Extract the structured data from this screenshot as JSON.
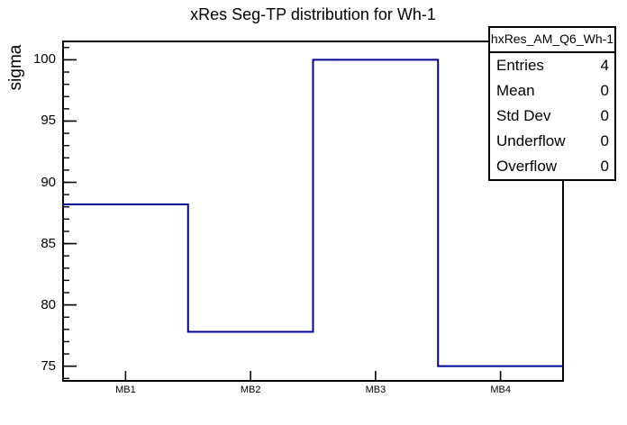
{
  "chart_data": {
    "type": "bar",
    "style": "step-histogram",
    "title": "xRes Seg-TP distribution for Wh-1",
    "xlabel": "",
    "ylabel": "sigma",
    "categories": [
      "MB1",
      "MB2",
      "MB3",
      "MB4"
    ],
    "values": [
      88.2,
      77.8,
      100,
      75
    ],
    "ylim": [
      73.8,
      101.5
    ],
    "y_major_ticks": [
      75,
      80,
      85,
      90,
      95,
      100
    ],
    "y_minor_tick_step": 1,
    "grid": false,
    "legend_position": "none"
  },
  "stats_box": {
    "name": "hxRes_AM_Q6_Wh-1",
    "rows": [
      {
        "label": "Entries",
        "value": "4"
      },
      {
        "label": "Mean",
        "value": "0"
      },
      {
        "label": "Std Dev",
        "value": "0"
      },
      {
        "label": "Underflow",
        "value": "0"
      },
      {
        "label": "Overflow",
        "value": "0"
      }
    ]
  },
  "colors": {
    "histogram_line": "#000099",
    "frame": "#000000",
    "background": "#ffffff",
    "text": "#000000"
  }
}
